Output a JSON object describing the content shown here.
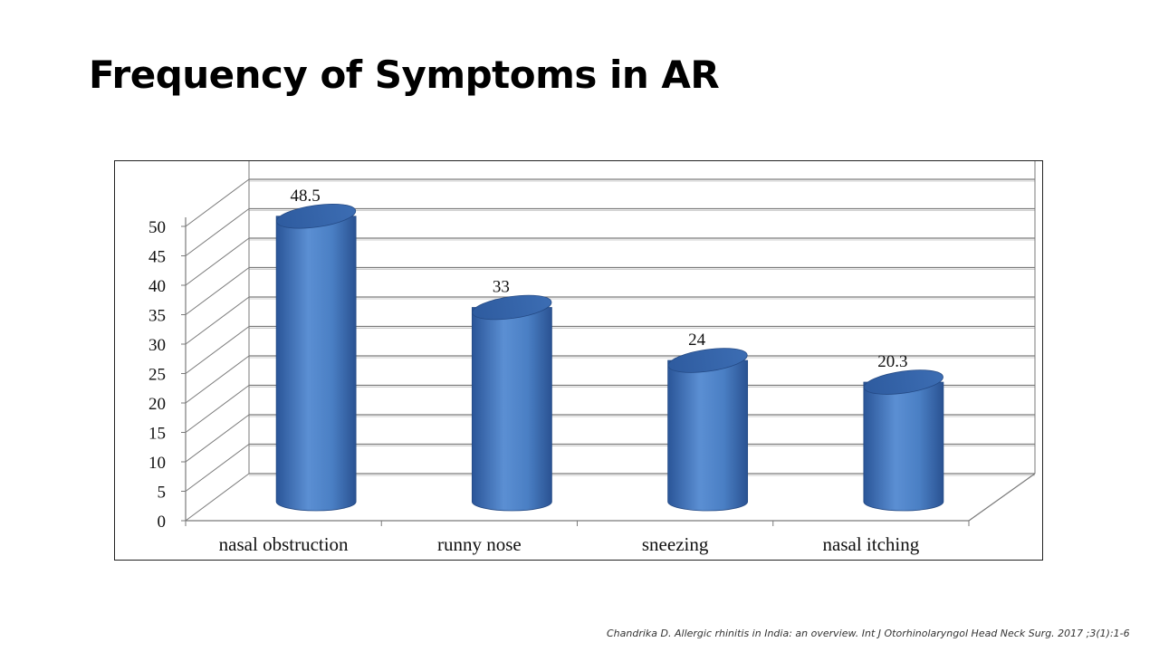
{
  "slide": {
    "title": "Frequency of Symptoms in AR",
    "citation": "Chandrika D. Allergic rhinitis in India: an overview. Int J Otorhinolaryngol Head Neck Surg. 2017 ;3(1):1-6"
  },
  "chart_data": {
    "type": "bar",
    "style": "3d-cylinder",
    "categories": [
      "nasal obstruction",
      "runny nose",
      "sneezing",
      "nasal itching"
    ],
    "values": [
      48.5,
      33,
      24,
      20.3
    ],
    "data_labels": [
      "48.5",
      "33",
      "24",
      "20.3"
    ],
    "y_ticks": [
      "0",
      "5",
      "10",
      "15",
      "20",
      "25",
      "30",
      "35",
      "40",
      "45",
      "50"
    ],
    "ylim": [
      0,
      50
    ],
    "grid": true,
    "legend": "none",
    "bar_color": "#4f81bd"
  }
}
